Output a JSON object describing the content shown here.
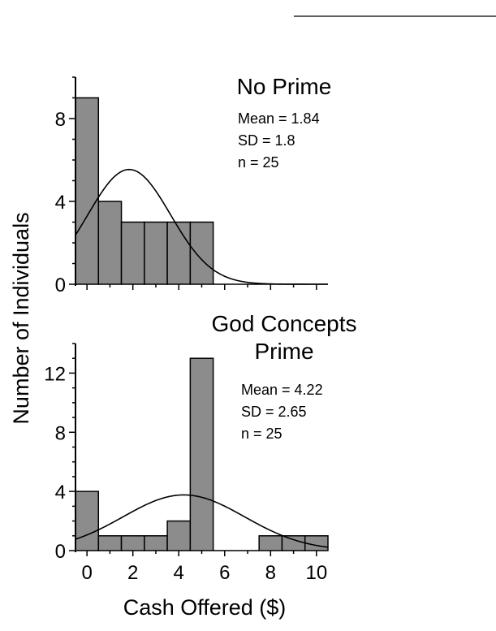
{
  "chart_data": {
    "type": "bar",
    "ylabel": "Number of Individuals",
    "xlabel": "Cash Offered ($)",
    "x_ticks": [
      "0",
      "2",
      "4",
      "6",
      "8",
      "10"
    ],
    "xlim": [
      -0.5,
      10.5
    ],
    "bin_width": 1,
    "panels": [
      {
        "title_lines": [
          "No Prime"
        ],
        "stats": [
          "Mean = 1.84",
          "SD = 1.8",
          "n = 25"
        ],
        "ylim": [
          0,
          10
        ],
        "y_ticks": [
          "0",
          "4",
          "8"
        ],
        "bin_centers": [
          0,
          1,
          2,
          3,
          4,
          5,
          6,
          7,
          8,
          9,
          10
        ],
        "counts": [
          9,
          4,
          3,
          3,
          3,
          3,
          0,
          0,
          0,
          0,
          0
        ],
        "normal_curve": {
          "mean": 1.84,
          "sd": 1.8,
          "n": 25
        }
      },
      {
        "title_lines": [
          "God Concepts",
          "Prime"
        ],
        "stats": [
          "Mean = 4.22",
          "SD = 2.65",
          "n = 25"
        ],
        "ylim": [
          0,
          14
        ],
        "y_ticks": [
          "0",
          "4",
          "8",
          "12"
        ],
        "bin_centers": [
          0,
          1,
          2,
          3,
          4,
          5,
          6,
          7,
          8,
          9,
          10
        ],
        "counts": [
          4,
          1,
          1,
          1,
          2,
          13,
          0,
          0,
          1,
          1,
          1
        ],
        "normal_curve": {
          "mean": 4.22,
          "sd": 2.65,
          "n": 25
        }
      }
    ]
  }
}
